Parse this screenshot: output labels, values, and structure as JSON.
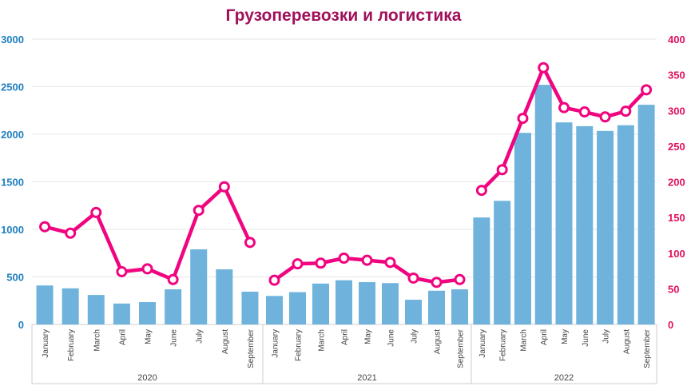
{
  "chart_data": {
    "type": "bar+line",
    "title": "Грузоперевозки и логистика",
    "groups": [
      {
        "label": "2020",
        "months": [
          "January",
          "February",
          "March",
          "April",
          "May",
          "June",
          "July",
          "August",
          "September"
        ]
      },
      {
        "label": "2021",
        "months": [
          "January",
          "February",
          "March",
          "April",
          "May",
          "June",
          "July",
          "August",
          "September"
        ]
      },
      {
        "label": "2022",
        "months": [
          "January",
          "February",
          "March",
          "April",
          "May",
          "June",
          "July",
          "August",
          "September"
        ]
      }
    ],
    "series": [
      {
        "name": "bars",
        "type": "bar",
        "axis": "left",
        "color": "#6fb3dd",
        "values": [
          [
            410,
            380,
            310,
            220,
            235,
            370,
            790,
            580,
            345
          ],
          [
            300,
            340,
            430,
            465,
            445,
            435,
            260,
            355,
            370
          ],
          [
            1125,
            1300,
            2015,
            2520,
            2125,
            2085,
            2035,
            2095,
            2310
          ]
        ]
      },
      {
        "name": "line",
        "type": "line",
        "axis": "right",
        "color": "#f0047f",
        "values": [
          [
            137,
            128,
            157,
            74,
            78,
            63,
            160,
            193,
            115
          ],
          [
            62,
            85,
            86,
            93,
            90,
            87,
            65,
            59,
            63
          ],
          [
            188,
            217,
            289,
            360,
            304,
            298,
            291,
            299,
            329
          ]
        ]
      }
    ],
    "left_axis": {
      "min": 0,
      "max": 3000,
      "ticks": [
        "0",
        "500",
        "1000",
        "1500",
        "2000",
        "2500",
        "3000"
      ],
      "color": "#1f7fc0"
    },
    "right_axis": {
      "min": 0,
      "max": 400,
      "ticks": [
        "0",
        "50",
        "100",
        "150",
        "200",
        "250",
        "300",
        "350",
        "400"
      ],
      "color": "#e0105f"
    },
    "grid": true
  }
}
